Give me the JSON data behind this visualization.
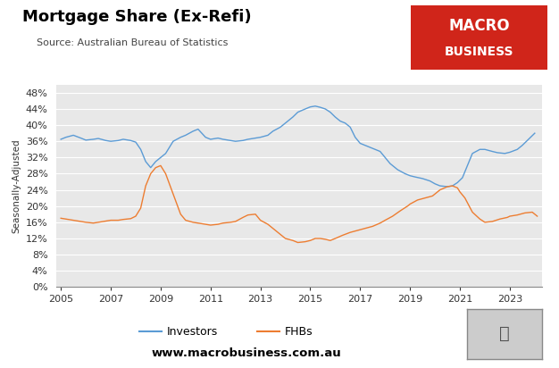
{
  "title": "Mortgage Share (Ex-Refi)",
  "source": "Source: Australian Bureau of Statistics",
  "ylabel": "Seasonally-Adjusted",
  "website": "www.macrobusiness.com.au",
  "investor_color": "#5b9bd5",
  "fhb_color": "#ed7d31",
  "background_color": "#e8e8e8",
  "ylim": [
    0,
    0.5
  ],
  "yticks": [
    0,
    0.04,
    0.08,
    0.12,
    0.16,
    0.2,
    0.24,
    0.28,
    0.32,
    0.36,
    0.4,
    0.44,
    0.48
  ],
  "xlim": [
    2004.8,
    2024.3
  ],
  "xticks": [
    2005,
    2007,
    2009,
    2011,
    2013,
    2015,
    2017,
    2019,
    2021,
    2023
  ],
  "investors_x": [
    2005.0,
    2005.2,
    2005.5,
    2005.8,
    2006.0,
    2006.3,
    2006.5,
    2006.8,
    2007.0,
    2007.3,
    2007.5,
    2007.8,
    2008.0,
    2008.2,
    2008.4,
    2008.6,
    2008.8,
    2009.0,
    2009.2,
    2009.5,
    2009.8,
    2010.0,
    2010.3,
    2010.5,
    2010.8,
    2011.0,
    2011.3,
    2011.5,
    2011.8,
    2012.0,
    2012.3,
    2012.5,
    2012.8,
    2013.0,
    2013.3,
    2013.5,
    2013.8,
    2014.0,
    2014.3,
    2014.5,
    2014.8,
    2015.0,
    2015.2,
    2015.4,
    2015.6,
    2015.8,
    2016.0,
    2016.2,
    2016.4,
    2016.6,
    2016.8,
    2017.0,
    2017.2,
    2017.4,
    2017.6,
    2017.8,
    2018.0,
    2018.2,
    2018.5,
    2018.8,
    2019.0,
    2019.2,
    2019.5,
    2019.8,
    2020.0,
    2020.2,
    2020.5,
    2020.7,
    2020.9,
    2021.1,
    2021.3,
    2021.5,
    2021.8,
    2022.0,
    2022.3,
    2022.5,
    2022.8,
    2023.0,
    2023.3,
    2023.5,
    2023.8,
    2024.0
  ],
  "investors_y": [
    0.365,
    0.37,
    0.375,
    0.368,
    0.363,
    0.365,
    0.367,
    0.362,
    0.36,
    0.362,
    0.365,
    0.362,
    0.358,
    0.34,
    0.31,
    0.295,
    0.31,
    0.32,
    0.33,
    0.36,
    0.37,
    0.375,
    0.385,
    0.39,
    0.37,
    0.365,
    0.368,
    0.365,
    0.362,
    0.36,
    0.362,
    0.365,
    0.368,
    0.37,
    0.375,
    0.385,
    0.395,
    0.405,
    0.42,
    0.432,
    0.44,
    0.445,
    0.447,
    0.444,
    0.44,
    0.432,
    0.42,
    0.41,
    0.405,
    0.395,
    0.37,
    0.355,
    0.35,
    0.345,
    0.34,
    0.335,
    0.32,
    0.305,
    0.29,
    0.28,
    0.275,
    0.272,
    0.268,
    0.262,
    0.255,
    0.25,
    0.248,
    0.25,
    0.258,
    0.27,
    0.3,
    0.33,
    0.34,
    0.34,
    0.335,
    0.332,
    0.33,
    0.333,
    0.34,
    0.35,
    0.368,
    0.38
  ],
  "fhbs_x": [
    2005.0,
    2005.2,
    2005.5,
    2005.8,
    2006.0,
    2006.3,
    2006.5,
    2006.8,
    2007.0,
    2007.3,
    2007.5,
    2007.8,
    2008.0,
    2008.2,
    2008.4,
    2008.6,
    2008.8,
    2009.0,
    2009.2,
    2009.5,
    2009.8,
    2010.0,
    2010.3,
    2010.5,
    2010.8,
    2011.0,
    2011.3,
    2011.5,
    2011.8,
    2012.0,
    2012.3,
    2012.5,
    2012.8,
    2013.0,
    2013.3,
    2013.5,
    2013.8,
    2014.0,
    2014.3,
    2014.5,
    2014.8,
    2015.0,
    2015.2,
    2015.4,
    2015.6,
    2015.8,
    2016.0,
    2016.3,
    2016.6,
    2016.9,
    2017.2,
    2017.5,
    2017.8,
    2018.0,
    2018.3,
    2018.6,
    2018.9,
    2019.0,
    2019.3,
    2019.6,
    2019.9,
    2020.0,
    2020.2,
    2020.5,
    2020.7,
    2020.9,
    2021.0,
    2021.2,
    2021.5,
    2021.8,
    2022.0,
    2022.3,
    2022.6,
    2022.9,
    2023.0,
    2023.3,
    2023.6,
    2023.9,
    2024.1
  ],
  "fhbs_y": [
    0.17,
    0.168,
    0.165,
    0.162,
    0.16,
    0.158,
    0.16,
    0.163,
    0.165,
    0.165,
    0.167,
    0.169,
    0.175,
    0.195,
    0.25,
    0.28,
    0.295,
    0.3,
    0.28,
    0.23,
    0.18,
    0.165,
    0.16,
    0.158,
    0.155,
    0.153,
    0.155,
    0.158,
    0.16,
    0.162,
    0.172,
    0.178,
    0.18,
    0.165,
    0.155,
    0.145,
    0.13,
    0.12,
    0.115,
    0.11,
    0.112,
    0.115,
    0.12,
    0.12,
    0.118,
    0.115,
    0.12,
    0.128,
    0.135,
    0.14,
    0.145,
    0.15,
    0.158,
    0.165,
    0.175,
    0.188,
    0.2,
    0.205,
    0.215,
    0.22,
    0.225,
    0.23,
    0.24,
    0.248,
    0.25,
    0.245,
    0.235,
    0.22,
    0.185,
    0.168,
    0.16,
    0.162,
    0.168,
    0.172,
    0.175,
    0.178,
    0.183,
    0.185,
    0.175
  ],
  "logo_text_line1": "MACRO",
  "logo_text_line2": "BUSINESS",
  "logo_bg": "#d0251a",
  "logo_text_color": "#ffffff"
}
